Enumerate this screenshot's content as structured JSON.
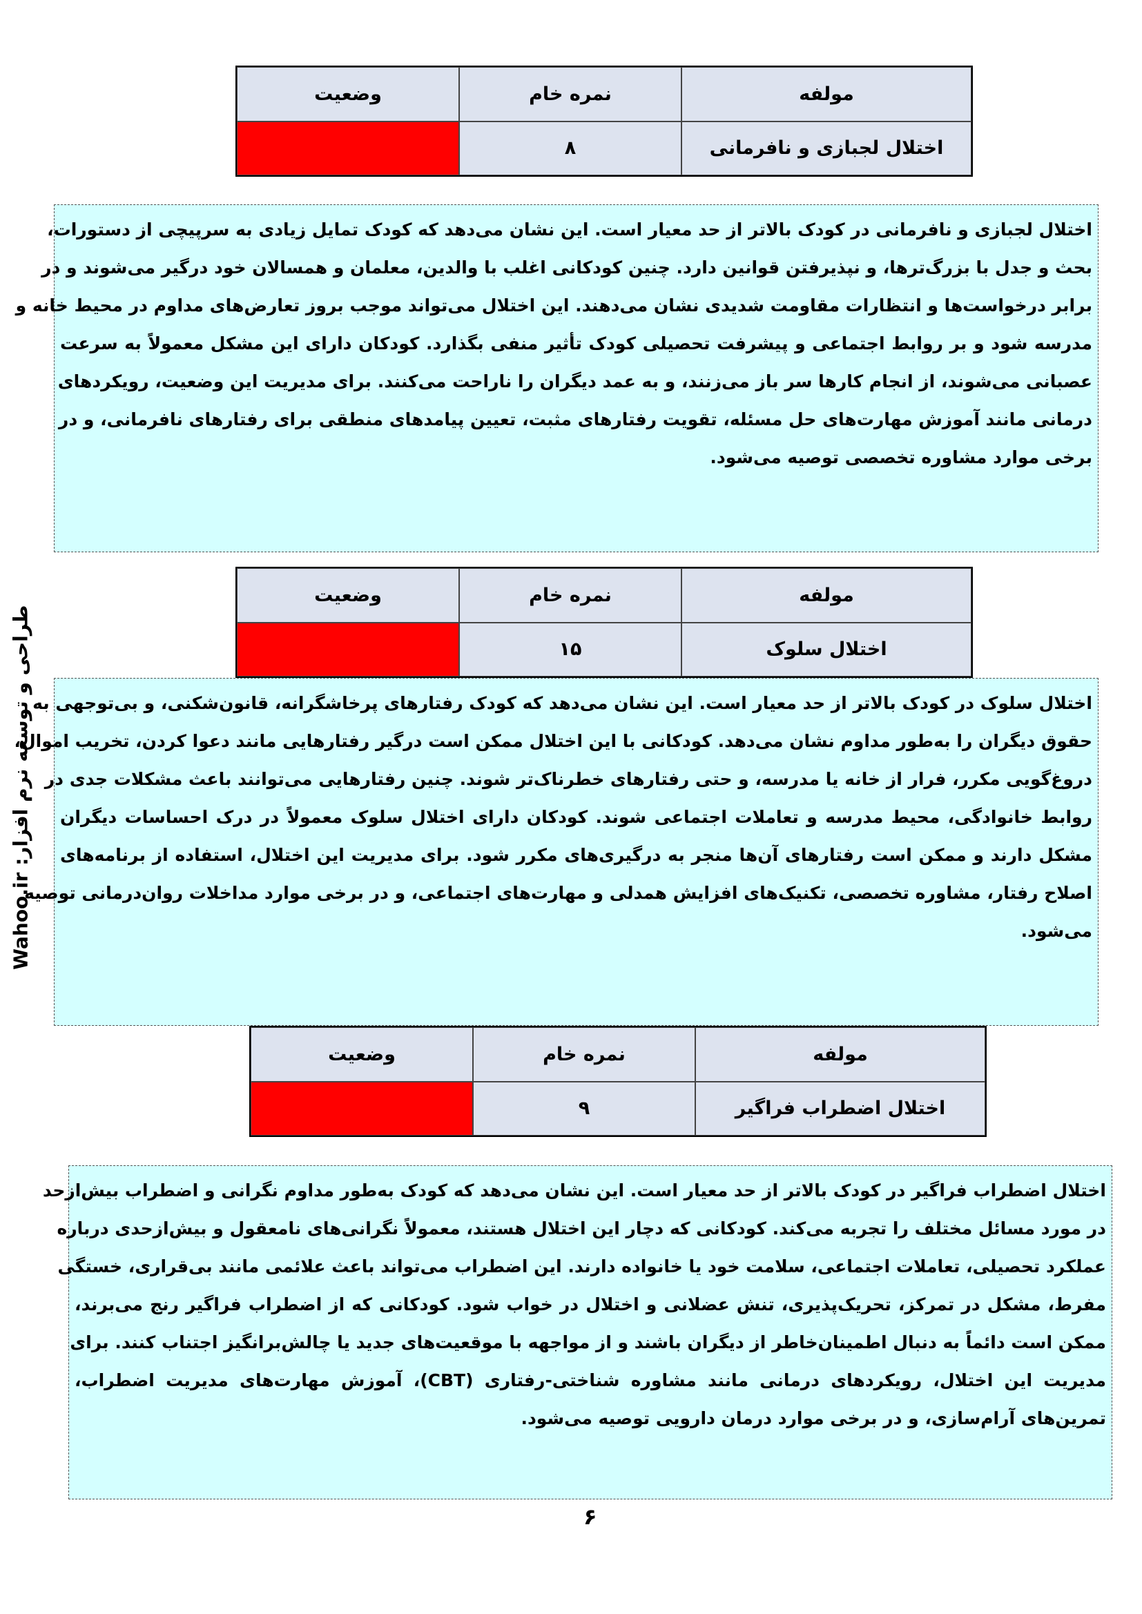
{
  "side_text": "طراحی و توسعه نرم افزار: Wahoo.ir",
  "page_number": "۶",
  "status_color": "#ff0000",
  "sections": [
    {
      "table": {
        "headers": {
          "status": "وضعیت",
          "raw_score": "نمره خام",
          "component": "مولفه"
        },
        "component": "اختلال لجبازی و نافرمانی",
        "raw_score": "۸",
        "status": ""
      },
      "lines": [
        "اختلال لجبازی و نافرمانی در کودک بالاتر از حد معیار است. این نشان می‌دهد که کودک تمایل زیادی به سرپیچی از دستورات،",
        "بحث و جدل با بزرگ‌ترها، و نپذیرفتن قوانین دارد. چنین کودکانی اغلب با والدین، معلمان و همسالان خود درگیر می‌شوند و در",
        "برابر  درخواست‌ها و انتظارات مقاومت شدیدی نشان می‌دهند. این اختلال می‌تواند موجب بروز تعارض‌های مداوم در محیط خانه و",
        "مدرسه شود و بر روابط اجتماعی و پیشرفت تحصیلی کودک تأثیر منفی بگذارد. کودکان دارای این مشکل معمولاً به سرعت",
        "عصبانی می‌شوند، از انجام کارها سر باز می‌زنند، و به عمد دیگران را ناراحت می‌کنند. برای مدیریت این وضعیت، رویکردهای",
        "درمانی مانند آموزش مهارت‌های حل مسئله، تقویت رفتارهای مثبت، تعیین پیامدهای منطقی برای رفتارهای نافرمانی، و در",
        "برخی موارد مشاوره تخصصی توصیه می‌شود."
      ]
    },
    {
      "table": {
        "headers": {
          "status": "وضعیت",
          "raw_score": "نمره خام",
          "component": "مولفه"
        },
        "component": "اختلال سلوک",
        "raw_score": "۱۵",
        "status": ""
      },
      "lines": [
        "اختلال سلوک در کودک بالاتر از حد معیار است. این نشان می‌دهد که کودک رفتارهای پرخاشگرانه، قانون‌شکنی، و بی‌توجهی به",
        "حقوق دیگران را به‌طور مداوم نشان می‌دهد. کودکانی با این اختلال ممکن است درگیر رفتارهایی مانند دعوا کردن، تخریب اموال،",
        "دروغ‌گویی مکرر، فرار از خانه یا مدرسه، و حتی رفتارهای خطرناک‌تر شوند. چنین رفتارهایی می‌توانند باعث مشکلات جدی در",
        "روابط خانوادگی، محیط مدرسه و تعاملات اجتماعی شوند. کودکان دارای اختلال سلوک معمولاً در درک احساسات دیگران",
        "مشکل دارند و ممکن است رفتارهای آن‌ها منجر به درگیری‌های مکرر شود. برای مدیریت این اختلال، استفاده از برنامه‌های",
        "اصلاح رفتار، مشاوره تخصصی، تکنیک‌های افزایش همدلی و مهارت‌های اجتماعی، و در برخی موارد مداخلات روان‌درمانی توصیه",
        "می‌شود."
      ]
    },
    {
      "table": {
        "headers": {
          "status": "وضعیت",
          "raw_score": "نمره خام",
          "component": "مولفه"
        },
        "component": "اختلال اضطراب فراگیر",
        "raw_score": "۹",
        "status": ""
      },
      "lines": [
        "اختلال اضطراب فراگیر در کودک بالاتر از حد معیار است. این نشان می‌دهد که کودک به‌طور مداوم نگرانی و اضطراب بیش‌ازحد",
        "در مورد مسائل مختلف را تجربه می‌کند. کودکانی که دچار این اختلال هستند، معمولاً نگرانی‌های نامعقول و بیش‌ازحدی درباره",
        "عملکرد تحصیلی، تعاملات اجتماعی، سلامت خود یا خانواده دارند. این اضطراب می‌تواند باعث علائمی مانند بی‌قراری، خستگی",
        "مفرط، مشکل در تمرکز، تحریک‌پذیری، تنش عضلانی و اختلال در خواب شود. کودکانی که از اضطراب فراگیر رنج می‌برند،",
        "ممکن است دائماً به دنبال اطمینان‌خاطر از دیگران باشند و از مواجهه با موقعیت‌های جدید یا چالش‌برانگیز اجتناب کنند. برای",
        "مدیریت این اختلال، رویکردهای درمانی مانند مشاوره شناختی-رفتاری (CBT)، آموزش مهارت‌های مدیریت اضطراب،",
        "تمرین‌های آرام‌سازی، و در برخی موارد درمان دارویی توصیه می‌شود."
      ]
    }
  ]
}
